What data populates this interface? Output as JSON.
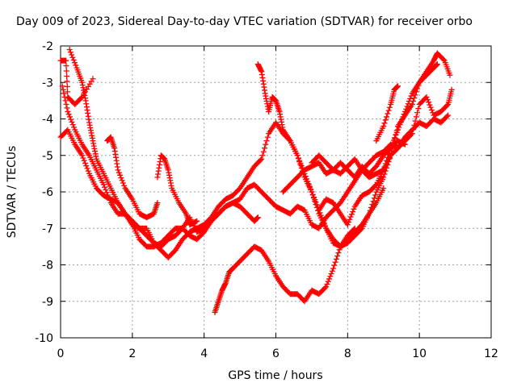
{
  "chart_data": {
    "type": "scatter",
    "title": "Day 009 of 2023, Sidereal Day-to-day VTEC variation (SDTVAR) for receiver orbo",
    "xlabel": "GPS time / hours",
    "ylabel": "SDTVAR / TECUs",
    "xlim": [
      0,
      12
    ],
    "ylim": [
      -10,
      -2
    ],
    "xticks": [
      0,
      2,
      4,
      6,
      8,
      10,
      12
    ],
    "yticks": [
      -2,
      -3,
      -4,
      -5,
      -6,
      -7,
      -8,
      -9,
      -10
    ],
    "grid": true,
    "marker": "+",
    "color": "#ff0000",
    "series": [
      {
        "points": [
          [
            0.0,
            -2.4
          ],
          [
            0.15,
            -2.4
          ],
          [
            0.2,
            -3.4
          ],
          [
            0.4,
            -3.6
          ],
          [
            0.6,
            -3.4
          ],
          [
            0.9,
            -2.9
          ]
        ]
      },
      {
        "points": [
          [
            0.25,
            -2.1
          ],
          [
            0.45,
            -2.6
          ],
          [
            0.6,
            -3.0
          ],
          [
            0.7,
            -3.5
          ],
          [
            0.8,
            -4.1
          ],
          [
            0.9,
            -4.6
          ],
          [
            1.0,
            -5.1
          ],
          [
            1.2,
            -5.5
          ],
          [
            1.4,
            -5.9
          ],
          [
            1.6,
            -6.3
          ],
          [
            1.8,
            -6.6
          ],
          [
            2.0,
            -6.9
          ],
          [
            2.2,
            -7.0
          ],
          [
            2.4,
            -7.2
          ],
          [
            2.6,
            -7.4
          ],
          [
            2.8,
            -7.5
          ],
          [
            3.0,
            -7.3
          ],
          [
            3.2,
            -7.2
          ],
          [
            3.4,
            -7.0
          ],
          [
            3.6,
            -6.7
          ],
          [
            3.8,
            -7.1
          ],
          [
            4.0,
            -7.0
          ],
          [
            4.2,
            -6.8
          ],
          [
            4.4,
            -6.6
          ],
          [
            4.6,
            -6.4
          ],
          [
            4.8,
            -6.3
          ],
          [
            5.0,
            -6.2
          ],
          [
            5.2,
            -5.9
          ],
          [
            5.4,
            -5.8
          ],
          [
            5.6,
            -6.0
          ],
          [
            5.8,
            -6.2
          ],
          [
            6.0,
            -6.4
          ],
          [
            6.2,
            -6.5
          ],
          [
            6.4,
            -6.6
          ],
          [
            6.6,
            -6.4
          ],
          [
            6.8,
            -6.5
          ],
          [
            7.0,
            -6.9
          ],
          [
            7.2,
            -7.0
          ],
          [
            7.4,
            -6.7
          ],
          [
            7.6,
            -6.5
          ],
          [
            7.8,
            -6.3
          ],
          [
            8.0,
            -6.0
          ],
          [
            8.2,
            -5.7
          ],
          [
            8.4,
            -5.4
          ],
          [
            8.6,
            -5.2
          ],
          [
            8.8,
            -5.0
          ],
          [
            9.0,
            -4.9
          ],
          [
            9.2,
            -4.7
          ],
          [
            9.4,
            -4.8
          ],
          [
            9.6,
            -4.5
          ],
          [
            9.8,
            -4.3
          ],
          [
            10.0,
            -4.1
          ],
          [
            10.2,
            -4.2
          ],
          [
            10.4,
            -4.0
          ],
          [
            10.6,
            -4.1
          ],
          [
            10.8,
            -3.9
          ]
        ]
      },
      {
        "points": [
          [
            0.05,
            -3.1
          ],
          [
            0.2,
            -3.8
          ],
          [
            0.4,
            -4.3
          ],
          [
            0.6,
            -4.7
          ],
          [
            0.8,
            -5.0
          ],
          [
            1.0,
            -5.4
          ],
          [
            1.2,
            -5.8
          ],
          [
            1.4,
            -6.3
          ],
          [
            1.6,
            -6.6
          ],
          [
            1.8,
            -6.6
          ],
          [
            2.0,
            -6.8
          ],
          [
            2.2,
            -7.0
          ],
          [
            2.4,
            -7.0
          ],
          [
            2.6,
            -7.4
          ],
          [
            2.8,
            -7.6
          ],
          [
            3.0,
            -7.8
          ],
          [
            3.2,
            -7.6
          ],
          [
            3.4,
            -7.3
          ],
          [
            3.6,
            -7.1
          ],
          [
            3.8,
            -7.0
          ],
          [
            4.0,
            -6.9
          ],
          [
            4.2,
            -6.7
          ],
          [
            4.4,
            -6.4
          ],
          [
            4.6,
            -6.2
          ],
          [
            4.8,
            -6.1
          ],
          [
            5.0,
            -5.9
          ],
          [
            5.2,
            -5.6
          ],
          [
            5.4,
            -5.3
          ],
          [
            5.6,
            -5.1
          ],
          [
            5.8,
            -4.4
          ],
          [
            6.0,
            -4.1
          ],
          [
            6.2,
            -4.4
          ],
          [
            6.4,
            -4.6
          ],
          [
            6.6,
            -5.0
          ],
          [
            6.8,
            -5.5
          ],
          [
            7.0,
            -6.0
          ],
          [
            7.2,
            -6.5
          ],
          [
            7.4,
            -7.0
          ],
          [
            7.6,
            -7.3
          ],
          [
            7.8,
            -7.5
          ],
          [
            8.0,
            -7.4
          ],
          [
            8.2,
            -7.2
          ],
          [
            8.4,
            -7.0
          ],
          [
            8.6,
            -6.6
          ],
          [
            8.8,
            -6.0
          ],
          [
            9.0,
            -5.6
          ],
          [
            9.2,
            -5.0
          ],
          [
            9.4,
            -4.2
          ],
          [
            9.6,
            -3.9
          ],
          [
            9.8,
            -3.6
          ],
          [
            10.0,
            -3.0
          ],
          [
            10.2,
            -2.7
          ],
          [
            10.4,
            -2.4
          ],
          [
            10.5,
            -2.2
          ],
          [
            10.7,
            -2.4
          ],
          [
            10.85,
            -2.8
          ]
        ]
      },
      {
        "points": [
          [
            0.0,
            -4.5
          ],
          [
            0.2,
            -4.3
          ],
          [
            0.4,
            -4.7
          ],
          [
            0.6,
            -5.0
          ],
          [
            0.8,
            -5.5
          ],
          [
            1.0,
            -5.9
          ],
          [
            1.2,
            -6.1
          ],
          [
            1.4,
            -6.2
          ],
          [
            1.6,
            -6.3
          ],
          [
            1.8,
            -6.6
          ],
          [
            2.0,
            -6.9
          ],
          [
            2.2,
            -7.3
          ],
          [
            2.4,
            -7.5
          ],
          [
            2.6,
            -7.5
          ],
          [
            2.8,
            -7.4
          ],
          [
            3.0,
            -7.2
          ],
          [
            3.2,
            -7.0
          ],
          [
            3.4,
            -7.0
          ],
          [
            3.6,
            -7.2
          ],
          [
            3.8,
            -7.3
          ],
          [
            4.0,
            -7.1
          ],
          [
            4.2,
            -6.8
          ],
          [
            4.4,
            -6.6
          ],
          [
            4.6,
            -6.4
          ],
          [
            4.8,
            -6.3
          ],
          [
            5.0,
            -6.4
          ],
          [
            5.2,
            -6.6
          ],
          [
            5.4,
            -6.8
          ],
          [
            5.5,
            -6.7
          ]
        ]
      },
      {
        "points": [
          [
            1.3,
            -4.6
          ],
          [
            1.4,
            -4.5
          ],
          [
            1.5,
            -4.8
          ],
          [
            1.6,
            -5.4
          ],
          [
            1.8,
            -5.9
          ],
          [
            2.0,
            -6.2
          ],
          [
            2.2,
            -6.6
          ],
          [
            2.4,
            -6.7
          ],
          [
            2.6,
            -6.6
          ],
          [
            2.7,
            -6.3
          ]
        ]
      },
      {
        "points": [
          [
            2.7,
            -5.6
          ],
          [
            2.8,
            -5.0
          ],
          [
            2.9,
            -5.1
          ],
          [
            3.0,
            -5.4
          ],
          [
            3.1,
            -5.9
          ],
          [
            3.3,
            -6.3
          ],
          [
            3.5,
            -6.6
          ],
          [
            3.6,
            -6.9
          ],
          [
            3.8,
            -6.8
          ]
        ]
      },
      {
        "points": [
          [
            5.5,
            -2.5
          ],
          [
            5.6,
            -2.7
          ],
          [
            5.7,
            -3.3
          ],
          [
            5.8,
            -3.8
          ],
          [
            5.9,
            -3.4
          ],
          [
            6.0,
            -3.5
          ],
          [
            6.1,
            -3.8
          ],
          [
            6.2,
            -4.3
          ],
          [
            6.4,
            -4.6
          ],
          [
            6.6,
            -5.0
          ],
          [
            6.8,
            -5.6
          ],
          [
            7.0,
            -6.0
          ],
          [
            7.2,
            -6.6
          ],
          [
            7.4,
            -7.0
          ],
          [
            7.6,
            -7.4
          ],
          [
            7.8,
            -7.5
          ],
          [
            8.0,
            -7.3
          ],
          [
            8.2,
            -7.1
          ],
          [
            8.4,
            -6.9
          ],
          [
            8.6,
            -6.6
          ],
          [
            8.8,
            -6.3
          ],
          [
            9.0,
            -5.9
          ]
        ]
      },
      {
        "points": [
          [
            6.2,
            -6.0
          ],
          [
            6.4,
            -5.8
          ],
          [
            6.6,
            -5.6
          ],
          [
            6.8,
            -5.4
          ],
          [
            7.0,
            -5.3
          ],
          [
            7.2,
            -5.2
          ],
          [
            7.4,
            -5.5
          ],
          [
            7.6,
            -5.4
          ],
          [
            7.8,
            -5.2
          ],
          [
            8.0,
            -5.4
          ],
          [
            8.2,
            -5.6
          ],
          [
            8.4,
            -5.3
          ],
          [
            8.6,
            -5.5
          ],
          [
            8.8,
            -5.3
          ],
          [
            9.0,
            -5.0
          ],
          [
            9.2,
            -4.8
          ],
          [
            9.4,
            -4.6
          ],
          [
            9.6,
            -4.7
          ]
        ]
      },
      {
        "points": [
          [
            7.0,
            -5.2
          ],
          [
            7.2,
            -5.0
          ],
          [
            7.4,
            -5.2
          ],
          [
            7.6,
            -5.4
          ],
          [
            7.8,
            -5.5
          ],
          [
            8.0,
            -5.3
          ],
          [
            8.2,
            -5.1
          ],
          [
            8.4,
            -5.4
          ],
          [
            8.6,
            -5.6
          ],
          [
            8.8,
            -5.5
          ],
          [
            9.0,
            -5.4
          ],
          [
            9.2,
            -5.0
          ],
          [
            9.4,
            -4.8
          ],
          [
            9.6,
            -4.6
          ],
          [
            9.8,
            -4.4
          ],
          [
            10.0,
            -3.6
          ],
          [
            10.2,
            -3.4
          ],
          [
            10.4,
            -3.9
          ],
          [
            10.6,
            -3.8
          ],
          [
            10.8,
            -3.6
          ],
          [
            10.9,
            -3.2
          ]
        ]
      },
      {
        "points": [
          [
            7.2,
            -6.5
          ],
          [
            7.4,
            -6.2
          ],
          [
            7.6,
            -6.3
          ],
          [
            7.8,
            -6.6
          ],
          [
            8.0,
            -6.9
          ],
          [
            8.2,
            -6.4
          ],
          [
            8.4,
            -6.1
          ],
          [
            8.6,
            -6.0
          ],
          [
            8.8,
            -5.8
          ],
          [
            9.0,
            -5.4
          ],
          [
            9.2,
            -4.8
          ],
          [
            9.4,
            -4.3
          ],
          [
            9.6,
            -3.8
          ],
          [
            9.8,
            -3.3
          ],
          [
            10.0,
            -3.0
          ],
          [
            10.2,
            -2.8
          ],
          [
            10.4,
            -2.6
          ],
          [
            10.5,
            -2.5
          ]
        ]
      },
      {
        "points": [
          [
            8.8,
            -4.6
          ],
          [
            9.0,
            -4.2
          ],
          [
            9.2,
            -3.6
          ],
          [
            9.3,
            -3.2
          ],
          [
            9.4,
            -3.1
          ]
        ]
      },
      {
        "points": [
          [
            4.3,
            -9.3
          ],
          [
            4.4,
            -9.0
          ],
          [
            4.5,
            -8.7
          ],
          [
            4.6,
            -8.5
          ],
          [
            4.7,
            -8.2
          ],
          [
            4.8,
            -8.1
          ],
          [
            5.0,
            -7.9
          ],
          [
            5.2,
            -7.7
          ],
          [
            5.4,
            -7.5
          ],
          [
            5.6,
            -7.6
          ],
          [
            5.8,
            -7.9
          ],
          [
            6.0,
            -8.3
          ],
          [
            6.2,
            -8.6
          ],
          [
            6.4,
            -8.8
          ],
          [
            6.6,
            -8.8
          ],
          [
            6.8,
            -9.0
          ],
          [
            7.0,
            -8.7
          ],
          [
            7.2,
            -8.8
          ],
          [
            7.4,
            -8.6
          ],
          [
            7.6,
            -8.1
          ],
          [
            7.8,
            -7.5
          ],
          [
            8.0,
            -7.2
          ],
          [
            8.2,
            -7.0
          ]
        ]
      }
    ]
  }
}
